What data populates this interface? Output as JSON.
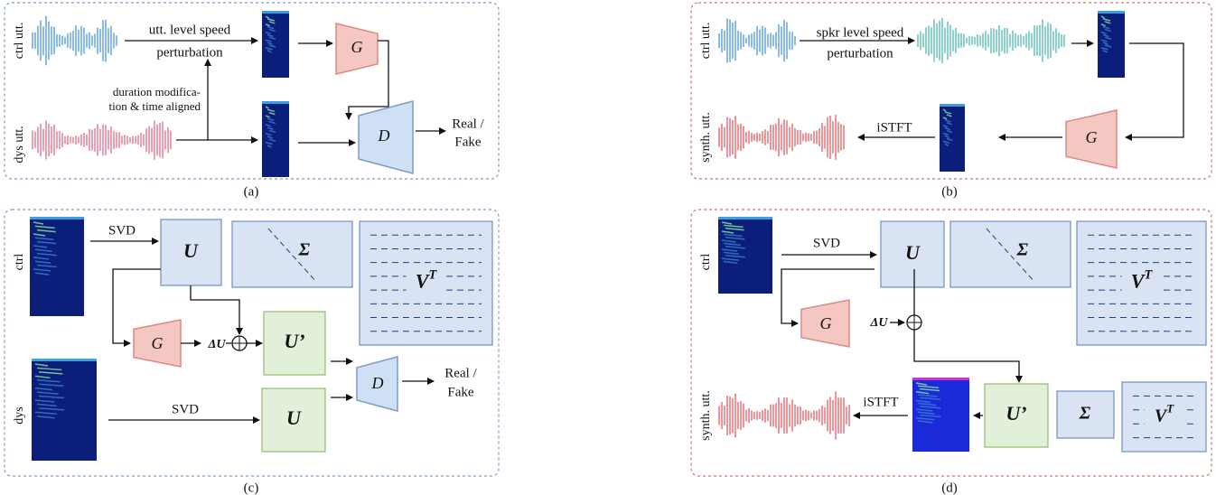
{
  "panels": {
    "a": {
      "ctrl_label": "ctrl utt.",
      "dys_label": "dys utt.",
      "perturb_line1": "utt. level speed",
      "perturb_line2": "perturbation",
      "align_line1": "duration modifica-",
      "align_line2": "tion & time aligned",
      "generator": "G",
      "discriminator": "D",
      "output_line1": "Real /",
      "output_line2": "Fake",
      "caption": "(a)"
    },
    "b": {
      "ctrl_label": "ctrl utt.",
      "perturb_line1": "spkr level speed",
      "perturb_line2": "perturbation",
      "synth_label": "synth. utt.",
      "istft": "iSTFT",
      "generator": "G",
      "caption": "(b)"
    },
    "c": {
      "ctrl_label": "ctrl",
      "dys_label": "dys",
      "svd_top": "SVD",
      "svd_bottom": "SVD",
      "u": "U",
      "sigma": "Σ",
      "vt_base": "V",
      "vt_sup": "T",
      "generator": "G",
      "delta_u": "ΔU",
      "u_prime": "U’",
      "u_dys": "U",
      "discriminator": "D",
      "output_line1": "Real /",
      "output_line2": "Fake",
      "caption": "(c)"
    },
    "d": {
      "ctrl_label": "ctrl",
      "svd": "SVD",
      "u": "U",
      "sigma": "Σ",
      "vt_base": "V",
      "vt_sup": "T",
      "generator": "G",
      "delta_u": "ΔU",
      "synth_label": "synth. utt.",
      "istft": "iSTFT",
      "u_prime": "U’",
      "sigma2": "Σ",
      "vt2_base": "V",
      "vt2_sup": "T",
      "caption": "(d)"
    }
  }
}
